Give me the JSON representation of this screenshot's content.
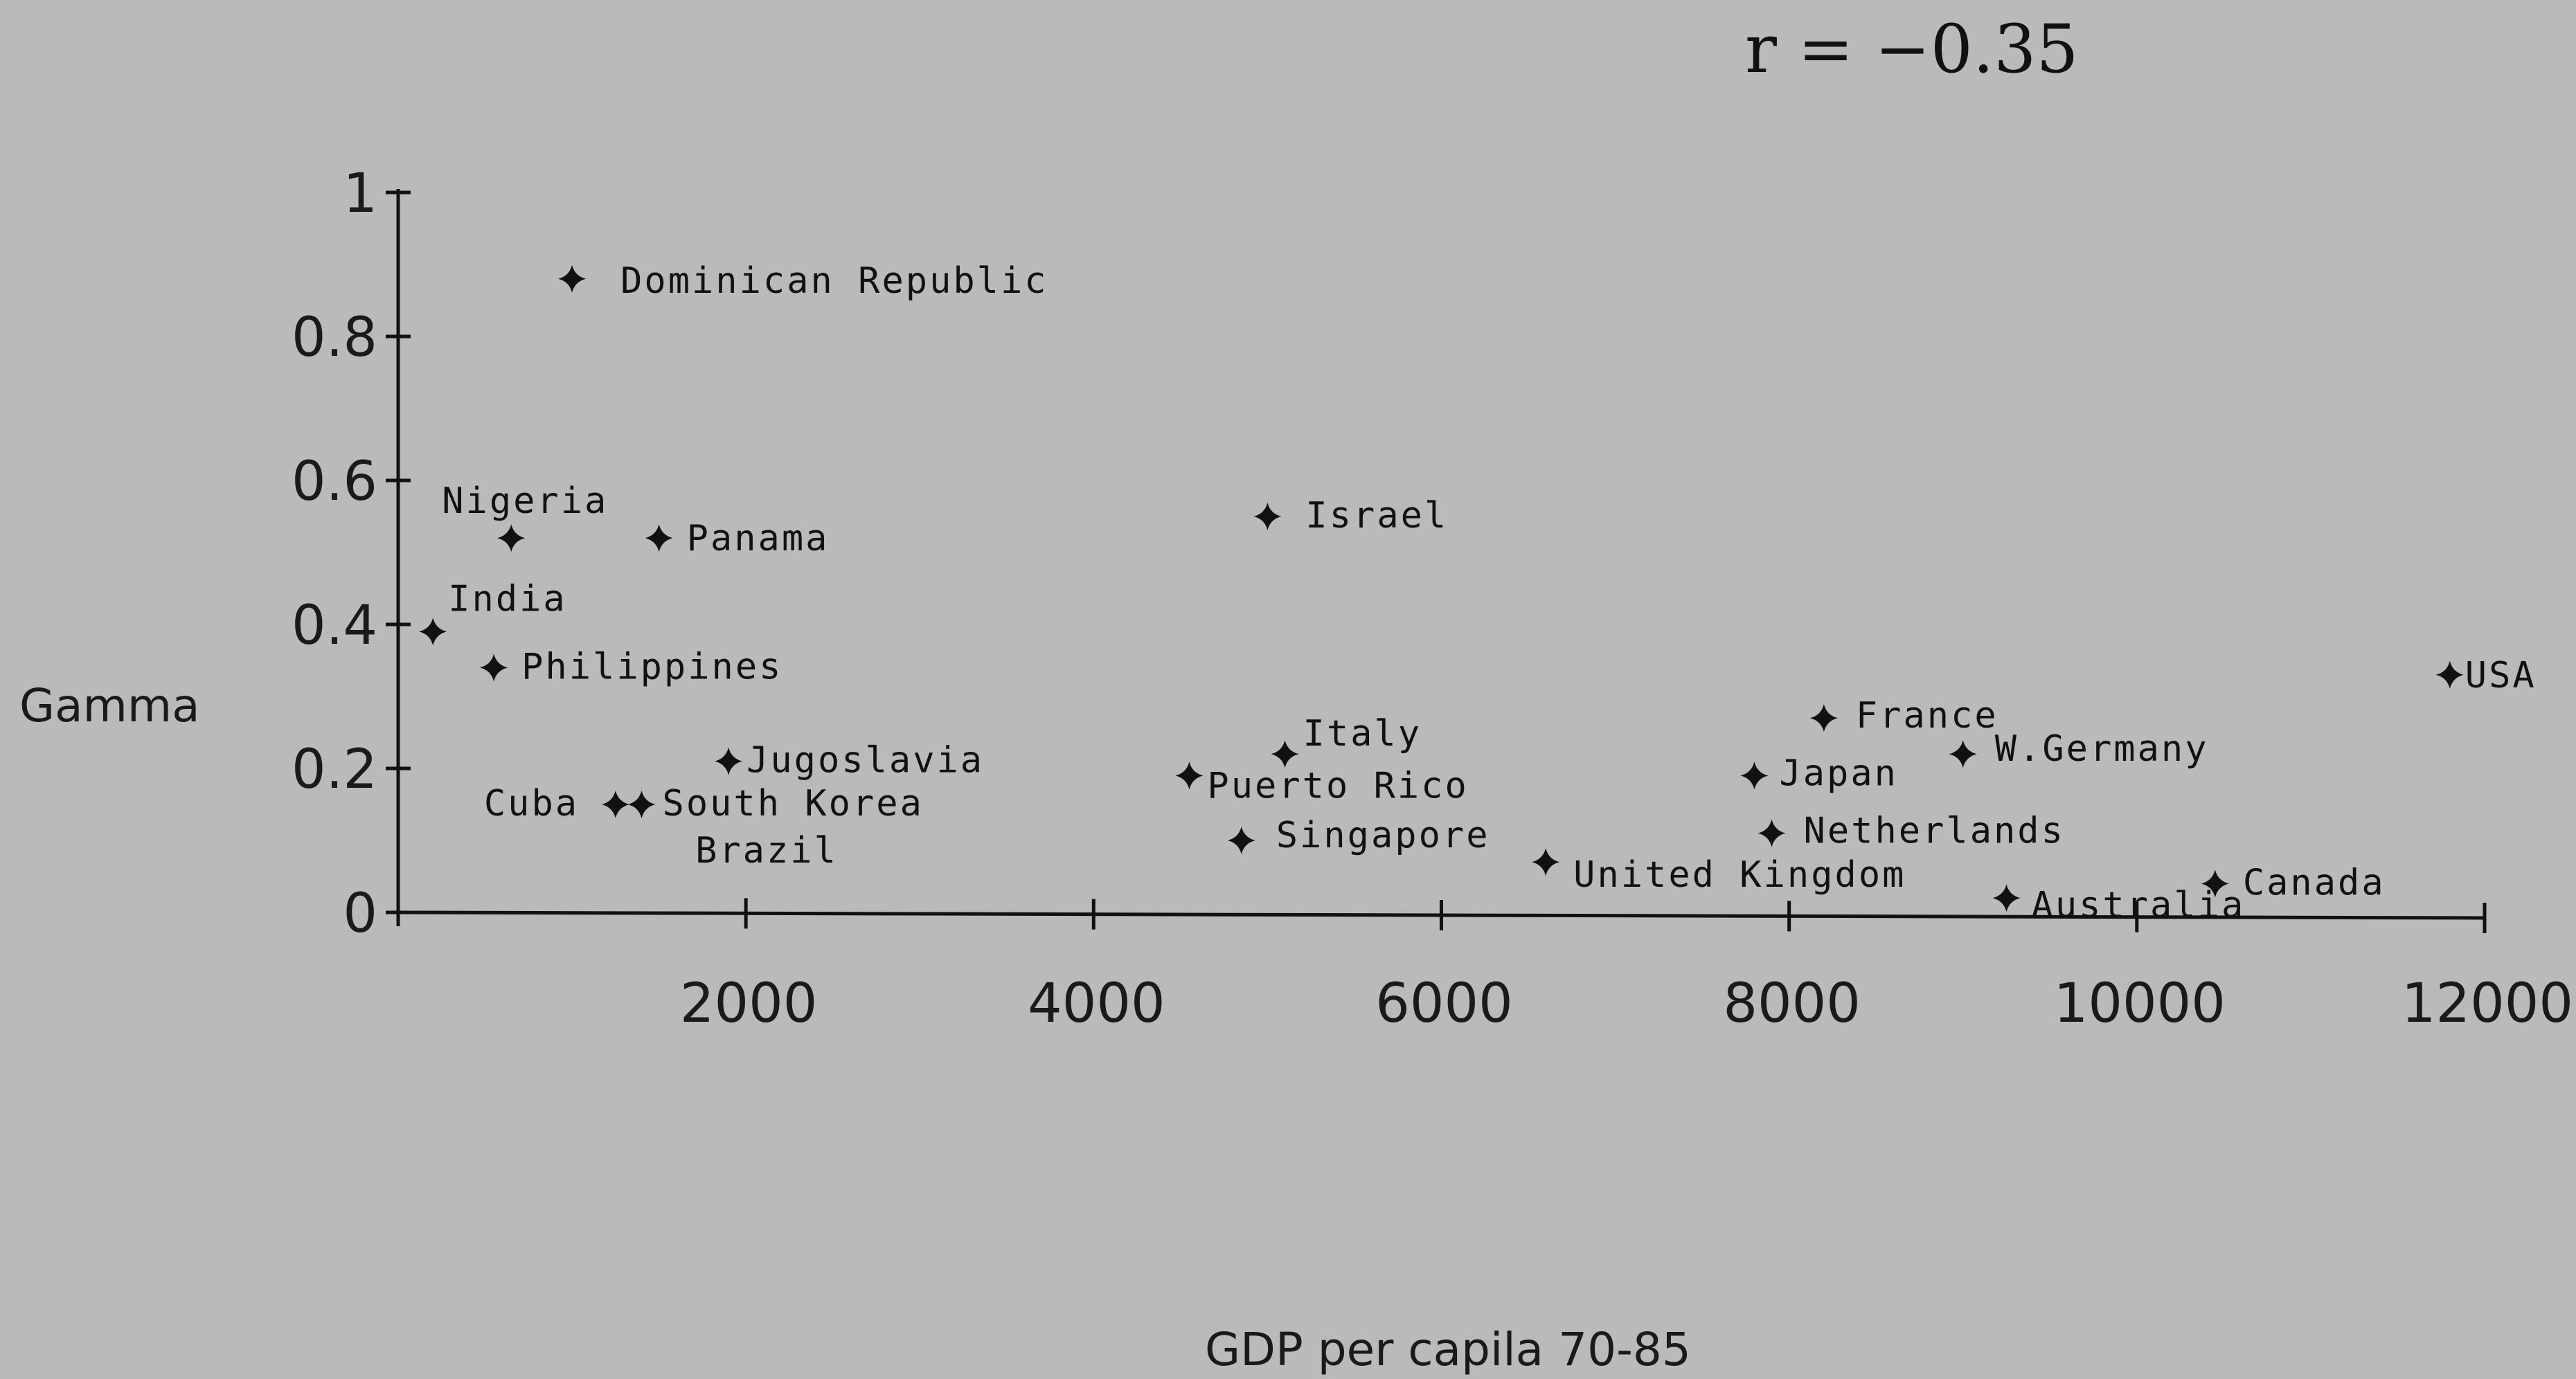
{
  "chart_data": {
    "type": "scatter",
    "annotation": "r = −0.35",
    "xlabel": "GDP per capila 70-85",
    "ylabel": "Gamma",
    "xlim": [
      0,
      12000
    ],
    "ylim": [
      0,
      1
    ],
    "x_ticks": [
      2000,
      4000,
      6000,
      8000,
      10000,
      12000
    ],
    "y_ticks": [
      0,
      0.2,
      0.4,
      0.6,
      0.8,
      1
    ],
    "y_tick_labels": [
      "0",
      "0.2",
      "0.4",
      "0.6",
      "0.8",
      "1"
    ],
    "x_tick_labels": [
      "2000",
      "4000",
      "6000",
      "8000",
      "10000",
      "12000"
    ],
    "points": [
      {
        "label": "Dominican Republic",
        "x": 1000,
        "y": 0.88
      },
      {
        "label": "Nigeria",
        "x": 650,
        "y": 0.52
      },
      {
        "label": "Panama",
        "x": 1500,
        "y": 0.52
      },
      {
        "label": "Israel",
        "x": 5000,
        "y": 0.55
      },
      {
        "label": "India",
        "x": 200,
        "y": 0.39
      },
      {
        "label": "Philippines",
        "x": 550,
        "y": 0.34
      },
      {
        "label": "Jugoslavia",
        "x": 1900,
        "y": 0.21
      },
      {
        "label": "Cuba",
        "x": 1250,
        "y": 0.15
      },
      {
        "label": "South Korea",
        "x": 1400,
        "y": 0.15
      },
      {
        "label": "Brazil",
        "x": 1450,
        "y": 0.15
      },
      {
        "label": "Italy",
        "x": 5100,
        "y": 0.22
      },
      {
        "label": "Puerto Rico",
        "x": 4550,
        "y": 0.19
      },
      {
        "label": "Singapore",
        "x": 4850,
        "y": 0.1
      },
      {
        "label": "United Kingdom",
        "x": 6600,
        "y": 0.07
      },
      {
        "label": "France",
        "x": 8200,
        "y": 0.27
      },
      {
        "label": "Japan",
        "x": 7800,
        "y": 0.19
      },
      {
        "label": "Netherlands",
        "x": 7900,
        "y": 0.11
      },
      {
        "label": "W.Germany",
        "x": 9000,
        "y": 0.22
      },
      {
        "label": "Australia",
        "x": 9250,
        "y": 0.02
      },
      {
        "label": "Canada",
        "x": 10450,
        "y": 0.04
      },
      {
        "label": "USA",
        "x": 11800,
        "y": 0.33
      }
    ]
  }
}
